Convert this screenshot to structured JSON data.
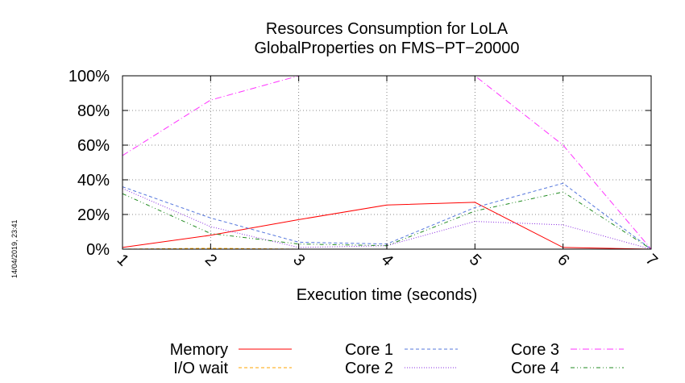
{
  "chart_data": {
    "type": "line",
    "title": [
      "Resources Consumption for LoLA",
      "GlobalProperties on FMS−PT−20000"
    ],
    "xlabel": "Execution time (seconds)",
    "ylabel": "",
    "x": [
      1,
      2,
      3,
      4,
      5,
      6,
      7
    ],
    "xlim": [
      1,
      7
    ],
    "ylim": [
      0,
      100
    ],
    "x_ticks": [
      "1",
      "2",
      "3",
      "4",
      "5",
      "6",
      "7"
    ],
    "y_ticks": [
      {
        "value": 0,
        "label": "0%"
      },
      {
        "value": 20,
        "label": "20%"
      },
      {
        "value": 40,
        "label": "40%"
      },
      {
        "value": 60,
        "label": "60%"
      },
      {
        "value": 80,
        "label": "80%"
      },
      {
        "value": 100,
        "label": "100%"
      }
    ],
    "grid": true,
    "legend_position": "bottom",
    "series": [
      {
        "name": "Memory",
        "color": "#ff0000",
        "dash": "solid",
        "values": [
          1,
          8,
          17,
          25.5,
          27,
          1,
          0
        ]
      },
      {
        "name": "I/O wait",
        "color": "#ffa500",
        "dash": "dashed",
        "values": [
          0,
          0.5,
          0,
          0,
          0,
          0,
          0
        ]
      },
      {
        "name": "Core 1",
        "color": "#5577dd",
        "dash": "dashed",
        "values": [
          36,
          18,
          4,
          3,
          24,
          38,
          0
        ]
      },
      {
        "name": "Core 2",
        "color": "#8a2be2",
        "dash": "dotted",
        "values": [
          35,
          13,
          1,
          2,
          16,
          14,
          0
        ]
      },
      {
        "name": "Core 3",
        "color": "#ff33ff",
        "dash": "dash-dot",
        "values": [
          54,
          86,
          100,
          100,
          100,
          60,
          0
        ]
      },
      {
        "name": "Core 4",
        "color": "#228b22",
        "dash": "dash-dot-dot",
        "values": [
          32,
          9,
          3,
          2,
          22,
          33,
          0
        ]
      }
    ]
  },
  "timestamp": "14/04/2019, 23:41"
}
